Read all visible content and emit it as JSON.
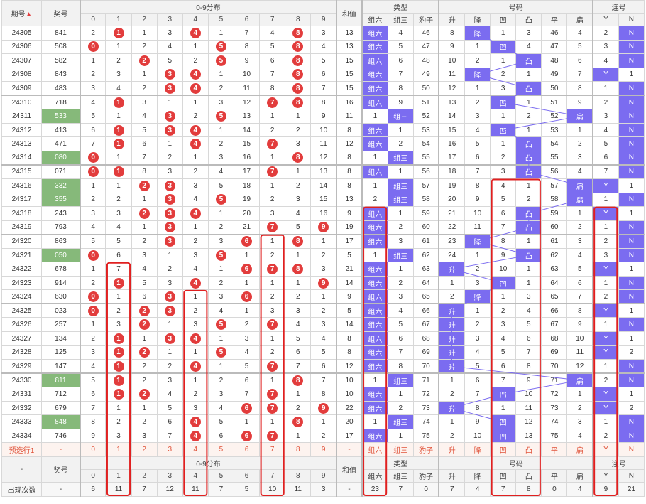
{
  "header": {
    "issue": "期号",
    "sort_icon": "▲",
    "prize": "奖号",
    "dist": "0-9分布",
    "digits": [
      "0",
      "1",
      "2",
      "3",
      "4",
      "5",
      "6",
      "7",
      "8",
      "9"
    ],
    "sum": "和值",
    "type": "类型",
    "haoma": "号码",
    "lian": "连号",
    "type_cols": [
      "组六",
      "组三",
      "豹子"
    ],
    "haoma_cols": [
      "升",
      "降",
      "凹",
      "凸",
      "平",
      "扁"
    ],
    "lian_cols": [
      "Y",
      "N"
    ]
  },
  "rows": [
    {
      "issue": "24305",
      "prize": "841",
      "hl": false,
      "dist": [
        "2",
        "1",
        "1",
        "3",
        "4",
        "1",
        "7",
        "4",
        "8",
        "3"
      ],
      "balls": [
        1,
        4,
        8
      ],
      "sum": "13",
      "type": [
        "组六",
        "4",
        "46"
      ],
      "tb": 0,
      "hm": [
        "8",
        "降",
        "1",
        "3",
        "46",
        "4"
      ],
      "hb": [
        1
      ],
      "ln": [
        "2",
        "N"
      ],
      "lb": 1
    },
    {
      "issue": "24306",
      "prize": "508",
      "hl": false,
      "dist": [
        "0",
        "1",
        "2",
        "4",
        "1",
        "5",
        "8",
        "5",
        "8",
        "4"
      ],
      "balls": [
        0,
        5,
        8
      ],
      "sum": "13",
      "type": [
        "组六",
        "5",
        "47"
      ],
      "tb": 0,
      "hm": [
        "9",
        "1",
        "凹",
        "4",
        "47",
        "5"
      ],
      "hb": [
        2
      ],
      "ln": [
        "3",
        "N"
      ],
      "lb": 1
    },
    {
      "issue": "24307",
      "prize": "582",
      "hl": false,
      "dist": [
        "1",
        "2",
        "2",
        "5",
        "2",
        "5",
        "9",
        "6",
        "8",
        "5"
      ],
      "balls": [
        2,
        5,
        8
      ],
      "sum": "15",
      "type": [
        "组六",
        "6",
        "48"
      ],
      "tb": 0,
      "hm": [
        "10",
        "2",
        "1",
        "凸",
        "48",
        "6"
      ],
      "hb": [
        3
      ],
      "ln": [
        "4",
        "N"
      ],
      "lb": 1
    },
    {
      "issue": "24308",
      "prize": "843",
      "hl": false,
      "dist": [
        "2",
        "3",
        "1",
        "3",
        "4",
        "1",
        "10",
        "7",
        "8",
        "6"
      ],
      "balls": [
        3,
        4,
        8
      ],
      "sum": "15",
      "type": [
        "组六",
        "7",
        "49"
      ],
      "tb": 0,
      "hm": [
        "11",
        "降",
        "2",
        "1",
        "49",
        "7"
      ],
      "hb": [
        1
      ],
      "ln": [
        "Y",
        "1"
      ],
      "lb": 0
    },
    {
      "issue": "24309",
      "prize": "483",
      "hl": false,
      "dist": [
        "3",
        "4",
        "2",
        "3",
        "4",
        "2",
        "11",
        "8",
        "8",
        "7"
      ],
      "balls": [
        3,
        4,
        8
      ],
      "sum": "15",
      "type": [
        "组六",
        "8",
        "50"
      ],
      "tb": 0,
      "hm": [
        "12",
        "1",
        "3",
        "凸",
        "50",
        "8"
      ],
      "hb": [
        3
      ],
      "ln": [
        "1",
        "N"
      ],
      "lb": 1
    },
    {
      "issue": "24310",
      "prize": "718",
      "hl": false,
      "dist": [
        "4",
        "1",
        "3",
        "1",
        "1",
        "3",
        "12",
        "7",
        "8",
        "8"
      ],
      "balls": [
        1,
        7,
        8
      ],
      "sum": "16",
      "type": [
        "组六",
        "9",
        "51"
      ],
      "tb": 0,
      "hm": [
        "13",
        "2",
        "凹",
        "1",
        "51",
        "9"
      ],
      "hb": [
        2
      ],
      "ln": [
        "2",
        "N"
      ],
      "lb": 1
    },
    {
      "issue": "24311",
      "prize": "533",
      "hl": true,
      "dist": [
        "5",
        "1",
        "4",
        "3",
        "2",
        "5",
        "13",
        "1",
        "1",
        "9"
      ],
      "balls": [
        3,
        5
      ],
      "sum": "11",
      "type": [
        "1",
        "组三",
        "52"
      ],
      "tb": 1,
      "hm": [
        "14",
        "3",
        "1",
        "2",
        "52",
        "扁"
      ],
      "hb": [
        5
      ],
      "ln": [
        "3",
        "N"
      ],
      "lb": 1
    },
    {
      "issue": "24312",
      "prize": "413",
      "hl": false,
      "dist": [
        "6",
        "1",
        "5",
        "3",
        "4",
        "1",
        "14",
        "2",
        "2",
        "10"
      ],
      "balls": [
        1,
        3,
        4
      ],
      "sum": "8",
      "type": [
        "组六",
        "1",
        "53"
      ],
      "tb": 0,
      "hm": [
        "15",
        "4",
        "凹",
        "1",
        "53",
        "1"
      ],
      "hb": [
        2
      ],
      "ln": [
        "4",
        "N"
      ],
      "lb": 1
    },
    {
      "issue": "24313",
      "prize": "471",
      "hl": false,
      "dist": [
        "7",
        "1",
        "6",
        "1",
        "4",
        "2",
        "15",
        "7",
        "3",
        "11"
      ],
      "balls": [
        1,
        4,
        7
      ],
      "sum": "12",
      "type": [
        "组六",
        "2",
        "54"
      ],
      "tb": 0,
      "hm": [
        "16",
        "5",
        "1",
        "凸",
        "54",
        "2"
      ],
      "hb": [
        3
      ],
      "ln": [
        "5",
        "N"
      ],
      "lb": 1
    },
    {
      "issue": "24314",
      "prize": "080",
      "hl": true,
      "dist": [
        "0",
        "1",
        "7",
        "2",
        "1",
        "3",
        "16",
        "1",
        "8",
        "12"
      ],
      "balls": [
        0,
        8
      ],
      "sum": "8",
      "type": [
        "1",
        "组三",
        "55"
      ],
      "tb": 1,
      "hm": [
        "17",
        "6",
        "2",
        "凸",
        "55",
        "3"
      ],
      "hb": [
        3
      ],
      "ln": [
        "6",
        "N"
      ],
      "lb": 1
    },
    {
      "issue": "24315",
      "prize": "071",
      "hl": false,
      "dist": [
        "0",
        "1",
        "8",
        "3",
        "2",
        "4",
        "17",
        "7",
        "1",
        "13"
      ],
      "balls": [
        0,
        1,
        7
      ],
      "sum": "8",
      "type": [
        "组六",
        "1",
        "56"
      ],
      "tb": 0,
      "hm": [
        "18",
        "7",
        "3",
        "凸",
        "56",
        "4"
      ],
      "hb": [
        3
      ],
      "ln": [
        "7",
        "N"
      ],
      "lb": 1
    },
    {
      "issue": "24316",
      "prize": "332",
      "hl": true,
      "dist": [
        "1",
        "1",
        "2",
        "3",
        "3",
        "5",
        "18",
        "1",
        "2",
        "14"
      ],
      "balls": [
        2,
        3
      ],
      "sum": "8",
      "type": [
        "1",
        "组三",
        "57"
      ],
      "tb": 1,
      "hm": [
        "19",
        "8",
        "4",
        "1",
        "57",
        "扁"
      ],
      "hb": [
        5
      ],
      "ln": [
        "Y",
        "1"
      ],
      "lb": 0
    },
    {
      "issue": "24317",
      "prize": "355",
      "hl": true,
      "dist": [
        "2",
        "2",
        "1",
        "3",
        "4",
        "5",
        "19",
        "2",
        "3",
        "15"
      ],
      "balls": [
        3,
        5
      ],
      "sum": "13",
      "type": [
        "2",
        "组三",
        "58"
      ],
      "tb": 1,
      "hm": [
        "20",
        "9",
        "5",
        "2",
        "58",
        "扁"
      ],
      "hb": [
        5
      ],
      "ln": [
        "1",
        "N"
      ],
      "lb": 1
    },
    {
      "issue": "24318",
      "prize": "243",
      "hl": false,
      "dist": [
        "3",
        "3",
        "2",
        "3",
        "4",
        "1",
        "20",
        "3",
        "4",
        "16"
      ],
      "balls": [
        2,
        3,
        4
      ],
      "sum": "9",
      "type": [
        "组六",
        "1",
        "59"
      ],
      "tb": 0,
      "hm": [
        "21",
        "10",
        "6",
        "凸",
        "59",
        "1"
      ],
      "hb": [
        3
      ],
      "ln": [
        "Y",
        "1"
      ],
      "lb": 0
    },
    {
      "issue": "24319",
      "prize": "793",
      "hl": false,
      "dist": [
        "4",
        "4",
        "1",
        "3",
        "1",
        "2",
        "21",
        "7",
        "5",
        "9"
      ],
      "balls": [
        3,
        7,
        9
      ],
      "sum": "19",
      "type": [
        "组六",
        "2",
        "60"
      ],
      "tb": 0,
      "hm": [
        "22",
        "11",
        "7",
        "凸",
        "60",
        "2"
      ],
      "hb": [
        3
      ],
      "ln": [
        "1",
        "N"
      ],
      "lb": 1
    },
    {
      "issue": "24320",
      "prize": "863",
      "hl": false,
      "dist": [
        "5",
        "5",
        "2",
        "3",
        "2",
        "3",
        "6",
        "1",
        "8",
        "1"
      ],
      "balls": [
        3,
        6,
        8
      ],
      "sum": "17",
      "type": [
        "组六",
        "3",
        "61"
      ],
      "tb": 0,
      "hm": [
        "23",
        "降",
        "8",
        "1",
        "61",
        "3"
      ],
      "hb": [
        1
      ],
      "ln": [
        "2",
        "N"
      ],
      "lb": 1
    },
    {
      "issue": "24321",
      "prize": "050",
      "hl": true,
      "dist": [
        "0",
        "6",
        "3",
        "1",
        "3",
        "5",
        "1",
        "2",
        "1",
        "2"
      ],
      "balls": [
        0,
        5
      ],
      "sum": "5",
      "type": [
        "1",
        "组三",
        "62"
      ],
      "tb": 1,
      "hm": [
        "24",
        "1",
        "9",
        "凸",
        "62",
        "4"
      ],
      "hb": [
        3
      ],
      "ln": [
        "3",
        "N"
      ],
      "lb": 1
    },
    {
      "issue": "24322",
      "prize": "678",
      "hl": false,
      "dist": [
        "1",
        "7",
        "4",
        "2",
        "4",
        "1",
        "6",
        "7",
        "8",
        "3"
      ],
      "balls": [
        6,
        7,
        8
      ],
      "sum": "21",
      "type": [
        "组六",
        "1",
        "63"
      ],
      "tb": 0,
      "hm": [
        "升",
        "2",
        "10",
        "1",
        "63",
        "5"
      ],
      "hb": [
        0
      ],
      "ln": [
        "Y",
        "1"
      ],
      "lb": 0
    },
    {
      "issue": "24323",
      "prize": "914",
      "hl": false,
      "dist": [
        "2",
        "1",
        "5",
        "3",
        "4",
        "2",
        "1",
        "1",
        "1",
        "9"
      ],
      "balls": [
        1,
        4,
        9
      ],
      "sum": "14",
      "type": [
        "组六",
        "2",
        "64"
      ],
      "tb": 0,
      "hm": [
        "1",
        "3",
        "凹",
        "1",
        "64",
        "6"
      ],
      "hb": [
        2
      ],
      "ln": [
        "1",
        "N"
      ],
      "lb": 1
    },
    {
      "issue": "24324",
      "prize": "630",
      "hl": false,
      "dist": [
        "0",
        "1",
        "6",
        "3",
        "1",
        "3",
        "6",
        "2",
        "2",
        "1"
      ],
      "balls": [
        0,
        3,
        6
      ],
      "sum": "9",
      "type": [
        "组六",
        "3",
        "65"
      ],
      "tb": 0,
      "hm": [
        "2",
        "降",
        "1",
        "3",
        "65",
        "7"
      ],
      "hb": [
        1
      ],
      "ln": [
        "2",
        "N"
      ],
      "lb": 1
    },
    {
      "issue": "24325",
      "prize": "023",
      "hl": false,
      "dist": [
        "0",
        "2",
        "2",
        "3",
        "2",
        "4",
        "1",
        "3",
        "3",
        "2"
      ],
      "balls": [
        0,
        2,
        3
      ],
      "sum": "5",
      "type": [
        "组六",
        "4",
        "66"
      ],
      "tb": 0,
      "hm": [
        "升",
        "1",
        "2",
        "4",
        "66",
        "8"
      ],
      "hb": [
        0
      ],
      "ln": [
        "Y",
        "1"
      ],
      "lb": 0
    },
    {
      "issue": "24326",
      "prize": "257",
      "hl": false,
      "dist": [
        "1",
        "3",
        "2",
        "1",
        "3",
        "5",
        "2",
        "7",
        "4",
        "3"
      ],
      "balls": [
        2,
        5,
        7
      ],
      "sum": "14",
      "type": [
        "组六",
        "5",
        "67"
      ],
      "tb": 0,
      "hm": [
        "升",
        "2",
        "3",
        "5",
        "67",
        "9"
      ],
      "hb": [
        0
      ],
      "ln": [
        "1",
        "N"
      ],
      "lb": 1
    },
    {
      "issue": "24327",
      "prize": "134",
      "hl": false,
      "dist": [
        "2",
        "1",
        "1",
        "3",
        "4",
        "1",
        "3",
        "1",
        "5",
        "4"
      ],
      "balls": [
        1,
        3,
        4
      ],
      "sum": "8",
      "type": [
        "组六",
        "6",
        "68"
      ],
      "tb": 0,
      "hm": [
        "升",
        "3",
        "4",
        "6",
        "68",
        "10"
      ],
      "hb": [
        0
      ],
      "ln": [
        "Y",
        "1"
      ],
      "lb": 0
    },
    {
      "issue": "24328",
      "prize": "125",
      "hl": false,
      "dist": [
        "3",
        "1",
        "2",
        "1",
        "1",
        "5",
        "4",
        "2",
        "6",
        "5"
      ],
      "balls": [
        1,
        2,
        5
      ],
      "sum": "8",
      "type": [
        "组六",
        "7",
        "69"
      ],
      "tb": 0,
      "hm": [
        "升",
        "4",
        "5",
        "7",
        "69",
        "11"
      ],
      "hb": [
        0
      ],
      "ln": [
        "Y",
        "2"
      ],
      "lb": 0
    },
    {
      "issue": "24329",
      "prize": "147",
      "hl": false,
      "dist": [
        "4",
        "1",
        "2",
        "2",
        "4",
        "1",
        "5",
        "7",
        "7",
        "6"
      ],
      "balls": [
        1,
        4,
        7
      ],
      "sum": "12",
      "type": [
        "组六",
        "8",
        "70"
      ],
      "tb": 0,
      "hm": [
        "升",
        "5",
        "6",
        "8",
        "70",
        "12"
      ],
      "hb": [
        0
      ],
      "ln": [
        "1",
        "N"
      ],
      "lb": 1
    },
    {
      "issue": "24330",
      "prize": "811",
      "hl": true,
      "dist": [
        "5",
        "1",
        "2",
        "3",
        "1",
        "2",
        "6",
        "1",
        "8",
        "7"
      ],
      "balls": [
        1,
        8
      ],
      "sum": "10",
      "type": [
        "1",
        "组三",
        "71"
      ],
      "tb": 1,
      "hm": [
        "1",
        "6",
        "7",
        "9",
        "71",
        "扁"
      ],
      "hb": [
        5
      ],
      "ln": [
        "2",
        "N"
      ],
      "lb": 1
    },
    {
      "issue": "24331",
      "prize": "712",
      "hl": false,
      "dist": [
        "6",
        "1",
        "2",
        "4",
        "2",
        "3",
        "7",
        "7",
        "1",
        "8"
      ],
      "balls": [
        1,
        2,
        7
      ],
      "sum": "10",
      "type": [
        "组六",
        "1",
        "72"
      ],
      "tb": 0,
      "hm": [
        "2",
        "7",
        "凹",
        "10",
        "72",
        "1"
      ],
      "hb": [
        2
      ],
      "ln": [
        "Y",
        "1"
      ],
      "lb": 0
    },
    {
      "issue": "24332",
      "prize": "679",
      "hl": false,
      "dist": [
        "7",
        "1",
        "1",
        "5",
        "3",
        "4",
        "6",
        "7",
        "2",
        "9"
      ],
      "balls": [
        6,
        7,
        9
      ],
      "sum": "22",
      "type": [
        "组六",
        "2",
        "73"
      ],
      "tb": 0,
      "hm": [
        "升",
        "8",
        "1",
        "11",
        "73",
        "2"
      ],
      "hb": [
        0
      ],
      "ln": [
        "Y",
        "2"
      ],
      "lb": 0
    },
    {
      "issue": "24333",
      "prize": "848",
      "hl": true,
      "dist": [
        "8",
        "2",
        "2",
        "6",
        "4",
        "5",
        "1",
        "1",
        "8",
        "1"
      ],
      "balls": [
        4,
        8
      ],
      "sum": "20",
      "type": [
        "1",
        "组三",
        "74"
      ],
      "tb": 1,
      "hm": [
        "1",
        "9",
        "凹",
        "12",
        "74",
        "3"
      ],
      "hb": [
        2
      ],
      "ln": [
        "1",
        "N"
      ],
      "lb": 1
    },
    {
      "issue": "24334",
      "prize": "746",
      "hb": [
        2
      ],
      "hl": false,
      "dist": [
        "9",
        "3",
        "3",
        "7",
        "4",
        "6",
        "6",
        "7",
        "1",
        "2"
      ],
      "balls": [
        4,
        6,
        7
      ],
      "sum": "17",
      "type": [
        "组六",
        "1",
        "75"
      ],
      "tb": 0,
      "hm": [
        "2",
        "10",
        "凹",
        "13",
        "75",
        "4"
      ],
      "ln": [
        "2",
        "N"
      ],
      "lb": 1
    }
  ],
  "predict": {
    "label": "预选行1",
    "cells": [
      "-",
      "0",
      "1",
      "2",
      "3",
      "4",
      "5",
      "6",
      "7",
      "8",
      "9",
      "-",
      "组六",
      "组三",
      "豹子",
      "升",
      "降",
      "凹",
      "凸",
      "平",
      "扁",
      "Y",
      "N"
    ]
  },
  "count": {
    "label": "出现次数",
    "cells": [
      "-",
      "6",
      "11",
      "7",
      "12",
      "11",
      "7",
      "5",
      "10",
      "11",
      "3",
      "-",
      "23",
      "7",
      "0",
      "7",
      "4",
      "7",
      "8",
      "0",
      "4",
      "9",
      "21"
    ]
  },
  "footer": {
    "dash": "-"
  },
  "colors": {
    "ball": "#e23c3c",
    "highlight": "#7b6cf0",
    "green": "#86b97a",
    "box": "#e02020"
  }
}
